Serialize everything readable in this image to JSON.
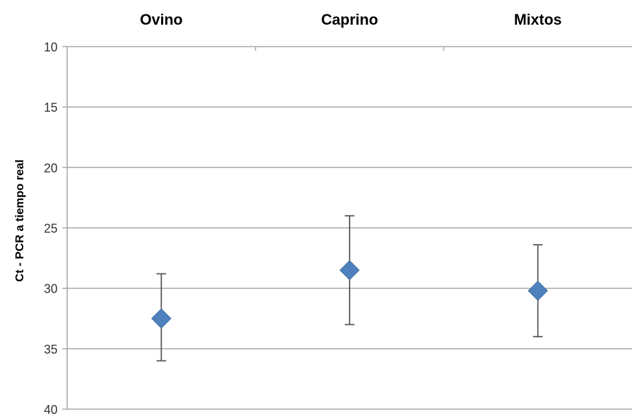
{
  "chart_data": {
    "type": "scatter",
    "categories": [
      "Ovino",
      "Caprino",
      "Mixtos"
    ],
    "ylabel": "Ct - PCR a tiempo real",
    "xlabel": "",
    "title": "",
    "ylim": [
      10,
      40
    ],
    "y_inverted": true,
    "x_axis_position": "top",
    "yticks": [
      "10",
      "15",
      "20",
      "25",
      "30",
      "35",
      "40"
    ],
    "grid": true,
    "series": [
      {
        "values": [
          32.5,
          28.5,
          30.2
        ],
        "error_low": [
          36.0,
          33.0,
          34.0
        ],
        "error_high": [
          28.8,
          24.0,
          26.4
        ]
      }
    ],
    "colors": {
      "marker": "#4F81BD",
      "grid": "#a6a6a6",
      "error_bar": "#555555",
      "axis": "#a6a6a6"
    }
  }
}
